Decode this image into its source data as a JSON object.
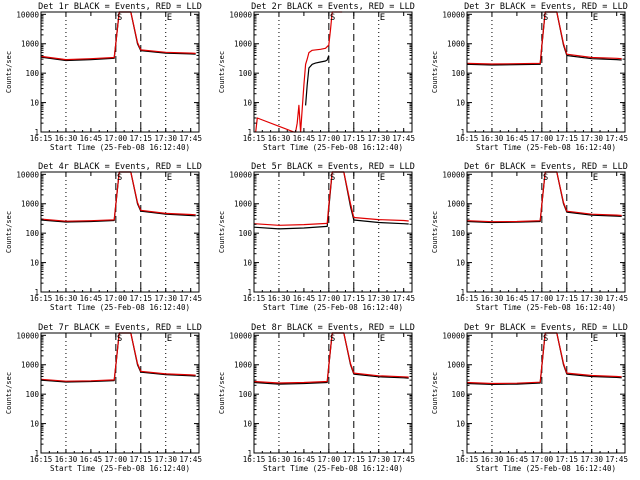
{
  "chart_data": [
    {
      "type": "line",
      "title": "Det 1r BLACK = Events, RED = LLD",
      "xlabel": "Start Time (25-Feb-08 16:12:40)",
      "ylabel": "Counts/sec",
      "scale_y": "log",
      "ylim": [
        1,
        12000
      ],
      "xlim": [
        "16:15",
        "17:50"
      ],
      "x_ticks": [
        "16:15",
        "16:30",
        "16:45",
        "17:00",
        "17:15",
        "17:30",
        "17:45"
      ],
      "y_ticks": [
        "1",
        "10",
        "100",
        "1000",
        "10000"
      ],
      "markers": [
        {
          "label": "S",
          "x": "17:00"
        },
        {
          "label": "E",
          "x": "17:30"
        }
      ],
      "dashed_lines": [
        "17:00",
        "17:15"
      ],
      "dotted_lines": [
        "16:30",
        "17:30"
      ],
      "series": [
        {
          "color": "#000000",
          "x": [
            "16:15",
            "16:30",
            "16:45",
            "16:59",
            "17:00",
            "17:02",
            "17:07",
            "17:09",
            "17:13",
            "17:15",
            "17:30",
            "17:45",
            "17:48"
          ],
          "values": [
            350,
            270,
            290,
            320,
            1000,
            12000,
            12000,
            12000,
            1000,
            580,
            480,
            450,
            440
          ]
        },
        {
          "color": "#e00000",
          "x": [
            "16:15",
            "16:30",
            "16:45",
            "16:59",
            "17:00",
            "17:02",
            "17:07",
            "17:09",
            "17:13",
            "17:15",
            "17:30",
            "17:45",
            "17:48"
          ],
          "values": [
            370,
            290,
            310,
            340,
            1000,
            12000,
            12000,
            12000,
            1100,
            620,
            510,
            480,
            470
          ]
        }
      ]
    },
    {
      "type": "line",
      "title": "Det 2r BLACK = Events, RED = LLD",
      "xlabel": "Start Time (25-Feb-08 16:12:40)",
      "ylabel": "Counts/sec",
      "scale_y": "log",
      "ylim": [
        1,
        12000
      ],
      "xlim": [
        "16:15",
        "17:50"
      ],
      "x_ticks": [
        "16:15",
        "16:30",
        "16:45",
        "17:00",
        "17:15",
        "17:30",
        "17:45"
      ],
      "y_ticks": [
        "1",
        "10",
        "100",
        "1000",
        "10000"
      ],
      "markers": [
        {
          "label": "S",
          "x": "17:00"
        },
        {
          "label": "E",
          "x": "17:30"
        }
      ],
      "dashed_lines": [
        "17:00",
        "17:15"
      ],
      "dotted_lines": [
        "16:30",
        "17:30"
      ],
      "series": [
        {
          "color": "#000000",
          "x": [
            "16:46",
            "16:47",
            "16:48",
            "16:50",
            "16:52",
            "16:55",
            "16:58",
            "16:59",
            "17:00"
          ],
          "values": [
            8,
            40,
            150,
            200,
            220,
            240,
            260,
            280,
            400
          ]
        },
        {
          "color": "#e00000",
          "x": [
            "16:16",
            "16:17",
            "16:39",
            "16:40",
            "16:41",
            "16:42",
            "16:43",
            "16:44",
            "16:45",
            "16:46",
            "16:47",
            "16:48",
            "16:50",
            "16:55",
            "16:58",
            "17:00",
            "17:01",
            "17:02",
            "17:05",
            "17:08"
          ],
          "values": [
            1,
            3,
            1,
            1,
            2,
            8,
            1,
            6,
            40,
            200,
            300,
            500,
            600,
            650,
            700,
            900,
            3000,
            12000,
            12000,
            12000
          ]
        }
      ]
    },
    {
      "type": "line",
      "title": "Det 3r BLACK = Events, RED = LLD",
      "xlabel": "Start Time (25-Feb-08 16:12:40)",
      "ylabel": "Counts/sec",
      "scale_y": "log",
      "ylim": [
        1,
        12000
      ],
      "xlim": [
        "16:15",
        "17:50"
      ],
      "x_ticks": [
        "16:15",
        "16:30",
        "16:45",
        "17:00",
        "17:15",
        "17:30",
        "17:45"
      ],
      "y_ticks": [
        "1",
        "10",
        "100",
        "1000",
        "10000"
      ],
      "markers": [
        {
          "label": "S",
          "x": "17:00"
        },
        {
          "label": "E",
          "x": "17:30"
        }
      ],
      "dashed_lines": [
        "17:00",
        "17:15"
      ],
      "dotted_lines": [
        "16:30",
        "17:30"
      ],
      "series": [
        {
          "color": "#000000",
          "x": [
            "16:15",
            "16:30",
            "16:45",
            "16:59",
            "17:00",
            "17:02",
            "17:07",
            "17:09",
            "17:13",
            "17:15",
            "17:30",
            "17:45",
            "17:48"
          ],
          "values": [
            200,
            190,
            195,
            200,
            800,
            12000,
            12000,
            12000,
            900,
            400,
            310,
            290,
            280
          ]
        },
        {
          "color": "#e00000",
          "x": [
            "16:15",
            "16:30",
            "16:45",
            "16:59",
            "17:00",
            "17:02",
            "17:07",
            "17:09",
            "17:13",
            "17:15",
            "17:30",
            "17:45",
            "17:48"
          ],
          "values": [
            215,
            205,
            210,
            215,
            850,
            12000,
            12000,
            12000,
            1000,
            440,
            340,
            320,
            310
          ]
        }
      ]
    },
    {
      "type": "line",
      "title": "Det 4r BLACK = Events, RED = LLD",
      "xlabel": "Start Time (25-Feb-08 16:12:40)",
      "ylabel": "Counts/sec",
      "scale_y": "log",
      "ylim": [
        1,
        12000
      ],
      "xlim": [
        "16:15",
        "17:50"
      ],
      "x_ticks": [
        "16:15",
        "16:30",
        "16:45",
        "17:00",
        "17:15",
        "17:30",
        "17:45"
      ],
      "y_ticks": [
        "1",
        "10",
        "100",
        "1000",
        "10000"
      ],
      "markers": [
        {
          "label": "S",
          "x": "17:00"
        },
        {
          "label": "E",
          "x": "17:30"
        }
      ],
      "dashed_lines": [
        "17:00",
        "17:15"
      ],
      "dotted_lines": [
        "16:30",
        "17:30"
      ],
      "series": [
        {
          "color": "#000000",
          "x": [
            "16:15",
            "16:30",
            "16:45",
            "16:59",
            "17:00",
            "17:02",
            "17:07",
            "17:09",
            "17:13",
            "17:15",
            "17:30",
            "17:45",
            "17:48"
          ],
          "values": [
            280,
            240,
            250,
            270,
            900,
            12000,
            12000,
            12000,
            1000,
            560,
            440,
            400,
            390
          ]
        },
        {
          "color": "#e00000",
          "x": [
            "16:15",
            "16:30",
            "16:45",
            "16:59",
            "17:00",
            "17:02",
            "17:07",
            "17:09",
            "17:13",
            "17:15",
            "17:30",
            "17:45",
            "17:48"
          ],
          "values": [
            300,
            255,
            265,
            285,
            950,
            12000,
            12000,
            12000,
            1100,
            600,
            470,
            430,
            420
          ]
        }
      ]
    },
    {
      "type": "line",
      "title": "Det 5r BLACK = Events, RED = LLD",
      "xlabel": "Start Time (25-Feb-08 16:12:40)",
      "ylabel": "Counts/sec",
      "scale_y": "log",
      "ylim": [
        1,
        12000
      ],
      "xlim": [
        "16:15",
        "17:50"
      ],
      "x_ticks": [
        "16:15",
        "16:30",
        "16:45",
        "17:00",
        "17:15",
        "17:30",
        "17:45"
      ],
      "y_ticks": [
        "1",
        "10",
        "100",
        "1000",
        "10000"
      ],
      "markers": [
        {
          "label": "S",
          "x": "17:00"
        },
        {
          "label": "E",
          "x": "17:30"
        }
      ],
      "dashed_lines": [
        "17:00",
        "17:15"
      ],
      "dotted_lines": [
        "16:30",
        "17:30"
      ],
      "series": [
        {
          "color": "#000000",
          "x": [
            "16:15",
            "16:30",
            "16:45",
            "16:59",
            "17:00",
            "17:02",
            "17:07",
            "17:09",
            "17:13",
            "17:15",
            "17:30",
            "17:45",
            "17:48"
          ],
          "values": [
            160,
            140,
            150,
            170,
            700,
            12000,
            12000,
            12000,
            800,
            280,
            230,
            210,
            205
          ]
        },
        {
          "color": "#e00000",
          "x": [
            "16:15",
            "16:30",
            "16:45",
            "16:59",
            "17:00",
            "17:02",
            "17:07",
            "17:09",
            "17:13",
            "17:15",
            "17:30",
            "17:45",
            "17:48"
          ],
          "values": [
            210,
            185,
            195,
            215,
            900,
            12000,
            12000,
            12000,
            1000,
            340,
            290,
            270,
            260
          ]
        }
      ]
    },
    {
      "type": "line",
      "title": "Det 6r BLACK = Events, RED = LLD",
      "xlabel": "Start Time (25-Feb-08 16:12:40)",
      "ylabel": "Counts/sec",
      "scale_y": "log",
      "ylim": [
        1,
        12000
      ],
      "xlim": [
        "16:15",
        "17:50"
      ],
      "x_ticks": [
        "16:15",
        "16:30",
        "16:45",
        "17:00",
        "17:15",
        "17:30",
        "17:45"
      ],
      "y_ticks": [
        "1",
        "10",
        "100",
        "1000",
        "10000"
      ],
      "markers": [
        {
          "label": "S",
          "x": "17:00"
        },
        {
          "label": "E",
          "x": "17:30"
        }
      ],
      "dashed_lines": [
        "17:00",
        "17:15"
      ],
      "dotted_lines": [
        "16:30",
        "17:30"
      ],
      "series": [
        {
          "color": "#000000",
          "x": [
            "16:15",
            "16:30",
            "16:45",
            "16:59",
            "17:00",
            "17:02",
            "17:07",
            "17:09",
            "17:13",
            "17:15",
            "17:30",
            "17:45",
            "17:48"
          ],
          "values": [
            250,
            230,
            235,
            250,
            900,
            12000,
            12000,
            12000,
            1000,
            520,
            410,
            380,
            370
          ]
        },
        {
          "color": "#e00000",
          "x": [
            "16:15",
            "16:30",
            "16:45",
            "16:59",
            "17:00",
            "17:02",
            "17:07",
            "17:09",
            "17:13",
            "17:15",
            "17:30",
            "17:45",
            "17:48"
          ],
          "values": [
            265,
            245,
            250,
            265,
            950,
            12000,
            12000,
            12000,
            1100,
            560,
            440,
            410,
            400
          ]
        }
      ]
    },
    {
      "type": "line",
      "title": "Det 7r BLACK = Events, RED = LLD",
      "xlabel": "Start Time (25-Feb-08 16:12:40)",
      "ylabel": "Counts/sec",
      "scale_y": "log",
      "ylim": [
        1,
        12000
      ],
      "xlim": [
        "16:15",
        "17:50"
      ],
      "x_ticks": [
        "16:15",
        "16:30",
        "16:45",
        "17:00",
        "17:15",
        "17:30",
        "17:45"
      ],
      "y_ticks": [
        "1",
        "10",
        "100",
        "1000",
        "10000"
      ],
      "markers": [
        {
          "label": "S",
          "x": "17:00"
        },
        {
          "label": "E",
          "x": "17:30"
        }
      ],
      "dashed_lines": [
        "17:00",
        "17:15"
      ],
      "dotted_lines": [
        "16:30",
        "17:30"
      ],
      "series": [
        {
          "color": "#000000",
          "x": [
            "16:15",
            "16:30",
            "16:45",
            "16:59",
            "17:00",
            "17:02",
            "17:07",
            "17:09",
            "17:13",
            "17:15",
            "17:30",
            "17:45",
            "17:48"
          ],
          "values": [
            300,
            260,
            270,
            290,
            900,
            12000,
            12000,
            12000,
            1000,
            560,
            460,
            420,
            410
          ]
        },
        {
          "color": "#e00000",
          "x": [
            "16:15",
            "16:30",
            "16:45",
            "16:59",
            "17:00",
            "17:02",
            "17:07",
            "17:09",
            "17:13",
            "17:15",
            "17:30",
            "17:45",
            "17:48"
          ],
          "values": [
            320,
            275,
            285,
            305,
            950,
            12000,
            12000,
            12000,
            1100,
            600,
            490,
            450,
            440
          ]
        }
      ]
    },
    {
      "type": "line",
      "title": "Det 8r BLACK = Events, RED = LLD",
      "xlabel": "Start Time (25-Feb-08 16:12:40)",
      "ylabel": "Counts/sec",
      "scale_y": "log",
      "ylim": [
        1,
        12000
      ],
      "xlim": [
        "16:15",
        "17:50"
      ],
      "x_ticks": [
        "16:15",
        "16:30",
        "16:45",
        "17:00",
        "17:15",
        "17:30",
        "17:45"
      ],
      "y_ticks": [
        "1",
        "10",
        "100",
        "1000",
        "10000"
      ],
      "markers": [
        {
          "label": "S",
          "x": "17:00"
        },
        {
          "label": "E",
          "x": "17:30"
        }
      ],
      "dashed_lines": [
        "17:00",
        "17:15"
      ],
      "dotted_lines": [
        "16:30",
        "17:30"
      ],
      "series": [
        {
          "color": "#000000",
          "x": [
            "16:15",
            "16:30",
            "16:45",
            "16:59",
            "17:00",
            "17:02",
            "17:07",
            "17:09",
            "17:13",
            "17:15",
            "17:30",
            "17:45",
            "17:48"
          ],
          "values": [
            250,
            220,
            230,
            250,
            900,
            12000,
            12000,
            12000,
            1000,
            480,
            390,
            360,
            350
          ]
        },
        {
          "color": "#e00000",
          "x": [
            "16:15",
            "16:30",
            "16:45",
            "16:59",
            "17:00",
            "17:02",
            "17:07",
            "17:09",
            "17:13",
            "17:15",
            "17:30",
            "17:45",
            "17:48"
          ],
          "values": [
            270,
            240,
            250,
            270,
            950,
            12000,
            12000,
            12000,
            1100,
            520,
            420,
            390,
            380
          ]
        }
      ]
    },
    {
      "type": "line",
      "title": "Det 9r BLACK = Events, RED = LLD",
      "xlabel": "Start Time (25-Feb-08 16:12:40)",
      "ylabel": "Counts/sec",
      "scale_y": "log",
      "ylim": [
        1,
        12000
      ],
      "xlim": [
        "16:15",
        "17:50"
      ],
      "x_ticks": [
        "16:15",
        "16:30",
        "16:45",
        "17:00",
        "17:15",
        "17:30",
        "17:45"
      ],
      "y_ticks": [
        "1",
        "10",
        "100",
        "1000",
        "10000"
      ],
      "markers": [
        {
          "label": "S",
          "x": "17:00"
        },
        {
          "label": "E",
          "x": "17:30"
        }
      ],
      "dashed_lines": [
        "17:00",
        "17:15"
      ],
      "dotted_lines": [
        "16:30",
        "17:30"
      ],
      "series": [
        {
          "color": "#000000",
          "x": [
            "16:15",
            "16:30",
            "16:45",
            "16:59",
            "17:00",
            "17:02",
            "17:07",
            "17:09",
            "17:13",
            "17:15",
            "17:30",
            "17:45",
            "17:48"
          ],
          "values": [
            230,
            215,
            220,
            240,
            850,
            12000,
            12000,
            12000,
            1000,
            480,
            400,
            370,
            360
          ]
        },
        {
          "color": "#e00000",
          "x": [
            "16:15",
            "16:30",
            "16:45",
            "16:59",
            "17:00",
            "17:02",
            "17:07",
            "17:09",
            "17:13",
            "17:15",
            "17:30",
            "17:45",
            "17:48"
          ],
          "values": [
            250,
            230,
            235,
            255,
            900,
            12000,
            12000,
            12000,
            1100,
            520,
            430,
            400,
            390
          ]
        }
      ]
    }
  ]
}
